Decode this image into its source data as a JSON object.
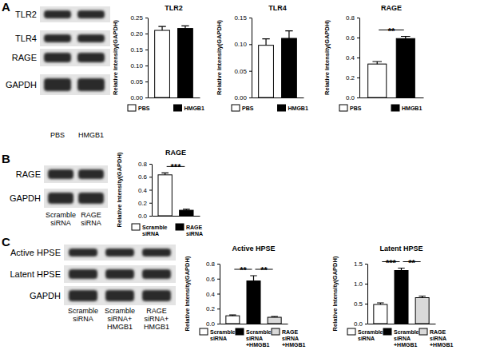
{
  "chart_data": [
    {
      "type": "bar",
      "title": "TLR2",
      "y_label": "Relative Intensity(GAPDH)",
      "categories": [
        "PBS",
        "HMGB1"
      ],
      "values": [
        0.21,
        0.216
      ],
      "errors": [
        0.012,
        0.008
      ],
      "colors": [
        "#ffffff",
        "#000000"
      ],
      "ylim": [
        0,
        0.25
      ],
      "yticks": [
        {
          "value": 0,
          "label": "0.00"
        },
        {
          "value": 0.05,
          "label": "0.05"
        },
        {
          "value": 0.1,
          "label": "0.10"
        },
        {
          "value": 0.15,
          "label": "0.15"
        },
        {
          "value": 0.2,
          "label": "0.20"
        },
        {
          "value": 0.25,
          "label": "0.25"
        }
      ],
      "tick_labels": "y",
      "legend": "bottom",
      "significance": []
    },
    {
      "type": "bar",
      "title": "TLR4",
      "y_label": "Relative Intensity(GAPDH)",
      "categories": [
        "PBS",
        "HMGB1"
      ],
      "values": [
        0.098,
        0.111
      ],
      "errors": [
        0.012,
        0.014
      ],
      "colors": [
        "#ffffff",
        "#000000"
      ],
      "ylim": [
        0,
        0.15
      ],
      "yticks": [
        {
          "value": 0,
          "label": "0.00"
        },
        {
          "value": 0.05,
          "label": "0.05"
        },
        {
          "value": 0.1,
          "label": "0.10"
        },
        {
          "value": 0.15,
          "label": "0.15"
        }
      ],
      "tick_labels": "y",
      "legend": "bottom",
      "significance": []
    },
    {
      "type": "bar",
      "title": "RAGE",
      "y_label": "Relative Intensity(GAPDH)",
      "categories": [
        "PBS",
        "HMGB1"
      ],
      "values": [
        0.335,
        0.59
      ],
      "errors": [
        0.025,
        0.022
      ],
      "colors": [
        "#ffffff",
        "#000000"
      ],
      "ylim": [
        0,
        0.8
      ],
      "yticks": [
        {
          "value": 0,
          "label": "0.0"
        },
        {
          "value": 0.2,
          "label": "0.2"
        },
        {
          "value": 0.4,
          "label": "0.4"
        },
        {
          "value": 0.6,
          "label": "0.6"
        },
        {
          "value": 0.8,
          "label": "0.8"
        }
      ],
      "tick_labels": "y",
      "legend": "bottom",
      "significance": [
        {
          "label": "**",
          "pair": [
            0,
            1
          ]
        }
      ]
    },
    {
      "type": "bar",
      "title": "RAGE",
      "y_label": "Relative Intensity(GAPDH)",
      "categories": [
        "Scramble siRNA",
        "RAGE siRNA"
      ],
      "values": [
        0.63,
        0.085
      ],
      "errors": [
        0.03,
        0.015
      ],
      "colors": [
        "#ffffff",
        "#000000"
      ],
      "ylim": [
        0,
        0.8
      ],
      "yticks": [
        {
          "value": 0,
          "label": "0.0"
        },
        {
          "value": 0.2,
          "label": "0.2"
        },
        {
          "value": 0.4,
          "label": "0.4"
        },
        {
          "value": 0.6,
          "label": "0.6"
        },
        {
          "value": 0.8,
          "label": "0.8"
        }
      ],
      "tick_labels": "y",
      "legend": "bottom",
      "significance": [
        {
          "label": "***",
          "pair": [
            0,
            1
          ]
        }
      ]
    },
    {
      "type": "bar",
      "title": "Active HPSE",
      "y_label": "Relative Intensity(GAPDH)",
      "categories": [
        "Scramble siRNA",
        "Scramble siRNA +HMGB1",
        "RAGE siRNA +HMGB1"
      ],
      "values": [
        0.105,
        0.57,
        0.085
      ],
      "errors": [
        0.01,
        0.07,
        0.01
      ],
      "colors": [
        "#ffffff",
        "#000000",
        "#d9d9d9"
      ],
      "ylim": [
        0,
        0.8
      ],
      "yticks": [
        {
          "value": 0,
          "label": "0.0"
        },
        {
          "value": 0.2,
          "label": "0.2"
        },
        {
          "value": 0.4,
          "label": "0.4"
        },
        {
          "value": 0.6,
          "label": "0.6"
        },
        {
          "value": 0.8,
          "label": "0.8"
        }
      ],
      "tick_labels": "y",
      "legend": "bottom",
      "significance": [
        {
          "label": "**",
          "pair": [
            0,
            1
          ]
        },
        {
          "label": "**",
          "pair": [
            1,
            2
          ]
        }
      ]
    },
    {
      "type": "bar",
      "title": "Latent HPSE",
      "y_label": "Relative Intensity(GAPDH)",
      "categories": [
        "Scramble siRNA",
        "Scramble siRNA +HMGB1",
        "RAGE siRNA +HMGB1"
      ],
      "values": [
        0.48,
        1.33,
        0.65
      ],
      "errors": [
        0.04,
        0.06,
        0.04
      ],
      "colors": [
        "#ffffff",
        "#000000",
        "#d9d9d9"
      ],
      "ylim": [
        0,
        1.5
      ],
      "yticks": [
        {
          "value": 0,
          "label": "0.0"
        },
        {
          "value": 0.5,
          "label": "0.5"
        },
        {
          "value": 1,
          "label": "1.0"
        },
        {
          "value": 1.5,
          "label": "1.5"
        }
      ],
      "tick_labels": "y",
      "legend": "bottom",
      "significance": [
        {
          "label": "***",
          "pair": [
            0,
            1
          ]
        },
        {
          "label": "**",
          "pair": [
            1,
            2
          ]
        }
      ]
    }
  ],
  "blots": [
    {
      "panel": "A",
      "rows": [
        "TLR2",
        "TLR4",
        "RAGE",
        "GAPDH"
      ],
      "lanes": [
        "PBS",
        "HMGB1"
      ]
    },
    {
      "panel": "B",
      "rows": [
        "RAGE",
        "GAPDH"
      ],
      "lanes": [
        "Scramble siRNA",
        "RAGE siRNA"
      ]
    },
    {
      "panel": "C",
      "rows": [
        "Active HPSE",
        "Latent HPSE",
        "GAPDH"
      ],
      "lanes": [
        "Scramble siRNA",
        "Scramble siRNA+ HMGB1",
        "RAGE siRNA+ HMGB1"
      ]
    }
  ]
}
